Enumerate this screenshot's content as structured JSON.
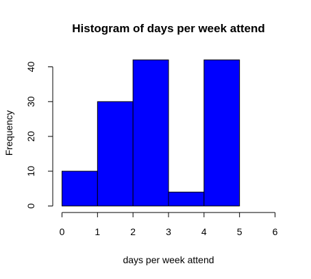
{
  "chart_data": {
    "type": "bar",
    "title": "Histogram of days per week attend",
    "xlabel": "days per week attend",
    "ylabel": "Frequency",
    "bins": [
      {
        "start": 0,
        "end": 1,
        "value": 10
      },
      {
        "start": 1,
        "end": 2,
        "value": 30
      },
      {
        "start": 2,
        "end": 3,
        "value": 42
      },
      {
        "start": 3,
        "end": 4,
        "value": 4
      },
      {
        "start": 4,
        "end": 5,
        "value": 42
      },
      {
        "start": 5,
        "end": 6,
        "value": 0
      }
    ],
    "xlim": [
      0,
      6
    ],
    "ylim": [
      0,
      40
    ],
    "x_ticks": [
      0,
      1,
      2,
      3,
      4,
      5,
      6
    ],
    "y_ticks": [
      0,
      10,
      20,
      30,
      40
    ],
    "grid": false,
    "bar_color": "#0000ff",
    "edge_color": "#000000"
  }
}
